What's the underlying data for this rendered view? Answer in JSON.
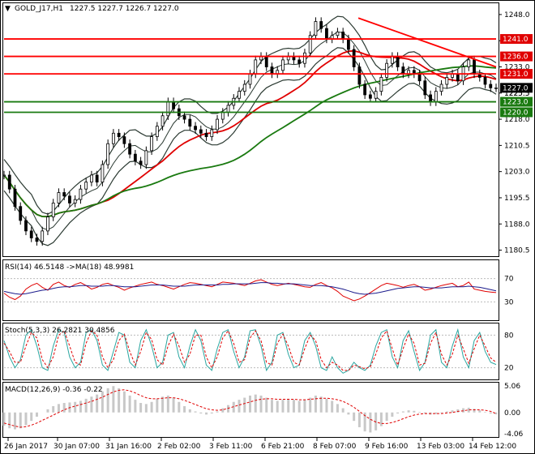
{
  "header": {
    "symbol": "GOLD_J17,H1",
    "ohlc": "1227.5 1227.7 1226.7 1227.0"
  },
  "colors": {
    "upper_band": "#1a2a22",
    "ma_red": "#e00000",
    "ma_green": "#1a7a10",
    "resistance_line": "#ff0000",
    "support_line": "#1a7a10",
    "badge_red": "#e00000",
    "badge_green": "#1a7a10",
    "badge_price": "#000000",
    "rsi_line": "#e00000",
    "rsi_ma": "#1b1b8c",
    "stoch_main": "#2aa6a0",
    "stoch_signal": "#e00000",
    "macd_hist": "#c8c8c8",
    "macd_signal": "#e00000"
  },
  "chart_data": [
    {
      "type": "candlestick",
      "panel": "price",
      "y_ticks": [
        1180.5,
        1188.0,
        1195.5,
        1203.0,
        1210.5,
        1218.0,
        1225.5,
        1233.0,
        1240.5,
        1248.0
      ],
      "y_tick_labels": [
        "1180.5",
        "1188.0",
        "1195.5",
        "1203.0",
        "1210.5",
        "1218.0",
        "1225.5",
        "1233.0",
        "1240.5",
        "1248.0"
      ],
      "ylim": [
        1179.0,
        1251.0
      ],
      "x_tick_labels": [
        "26 Jan 2017",
        "30 Jan 07:00",
        "31 Jan 16:00",
        "2 Feb 02:00",
        "3 Feb 11:00",
        "6 Feb 21:00",
        "8 Feb 07:00",
        "9 Feb 16:00",
        "13 Feb 03:00",
        "14 Feb 12:00"
      ],
      "horizontal_levels": [
        {
          "price": 1241.0,
          "label": "1241.0",
          "color": "red"
        },
        {
          "price": 1236.0,
          "label": "1236.0",
          "color": "red"
        },
        {
          "price": 1231.0,
          "label": "1231.0",
          "color": "red"
        },
        {
          "price": 1223.0,
          "label": "1223.0",
          "color": "green"
        },
        {
          "price": 1220.0,
          "label": "1220.0",
          "color": "green"
        }
      ],
      "current_price": {
        "price": 1227.0,
        "label": "1227.0"
      },
      "extra_price_label": "1225.5",
      "price_path": [
        1202,
        1198,
        1193,
        1189,
        1186,
        1184,
        1183,
        1186,
        1190,
        1194,
        1197,
        1196,
        1194,
        1195,
        1198,
        1200,
        1202,
        1200,
        1205,
        1211,
        1214,
        1213,
        1211,
        1208,
        1206,
        1205,
        1209,
        1213,
        1216,
        1219,
        1223,
        1221,
        1219,
        1218,
        1216,
        1215,
        1214,
        1213,
        1215,
        1218,
        1220,
        1222,
        1224,
        1226,
        1228,
        1231,
        1235,
        1236,
        1233,
        1231,
        1232,
        1235,
        1236,
        1235,
        1234,
        1237,
        1242,
        1246,
        1244,
        1241,
        1242,
        1243,
        1241,
        1238,
        1233,
        1228,
        1225,
        1224,
        1226,
        1230,
        1234,
        1236,
        1233,
        1231,
        1232,
        1231,
        1229,
        1225,
        1223,
        1226,
        1228,
        1230,
        1231,
        1229,
        1233,
        1235,
        1231,
        1230,
        1228,
        1227,
        1227
      ],
      "trendline": {
        "from_price": 1247.0,
        "to_price": 1233.0,
        "color": "red"
      },
      "moving_averages": [
        "red MA",
        "green MA"
      ],
      "bands": "bollinger-style envelopes"
    },
    {
      "type": "line",
      "panel": "RSI",
      "title": "RSI(14) 46.5148 ->MA(18) 48.9981",
      "levels": [
        70,
        30
      ],
      "level_labels": [
        "70",
        "30"
      ],
      "ylim": [
        0,
        100
      ],
      "rsi_path": [
        45,
        38,
        34,
        40,
        52,
        58,
        62,
        55,
        50,
        60,
        64,
        58,
        55,
        60,
        63,
        58,
        52,
        55,
        60,
        62,
        58,
        55,
        50,
        54,
        57,
        60,
        62,
        64,
        60,
        58,
        55,
        52,
        56,
        60,
        63,
        62,
        60,
        58,
        56,
        60,
        64,
        63,
        62,
        60,
        58,
        62,
        66,
        68,
        64,
        60,
        58,
        60,
        62,
        60,
        58,
        56,
        55,
        60,
        63,
        58,
        54,
        48,
        40,
        36,
        32,
        35,
        40,
        46,
        52,
        58,
        62,
        60,
        58,
        55,
        58,
        60,
        56,
        50,
        52,
        55,
        58,
        60,
        62,
        56,
        58,
        64,
        52,
        50,
        48,
        47,
        46
      ],
      "ma_path": [
        48,
        46,
        44,
        43,
        44,
        46,
        48,
        50,
        51,
        53,
        55,
        56,
        56,
        57,
        58,
        58,
        57,
        57,
        57,
        58,
        58,
        57,
        56,
        56,
        56,
        57,
        58,
        59,
        59,
        59,
        58,
        57,
        57,
        57,
        58,
        59,
        59,
        59,
        59,
        59,
        60,
        60,
        61,
        61,
        61,
        61,
        62,
        63,
        63,
        62,
        62,
        61,
        61,
        61,
        60,
        59,
        58,
        58,
        58,
        57,
        56,
        54,
        52,
        49,
        46,
        44,
        43,
        44,
        45,
        47,
        49,
        51,
        53,
        54,
        55,
        56,
        56,
        55,
        54,
        54,
        54,
        55,
        56,
        56,
        56,
        57,
        56,
        55,
        53,
        51,
        49
      ]
    },
    {
      "type": "line",
      "panel": "Stochastic",
      "title": "Stoch(5,3,3) 26.2821 30.4856",
      "levels": [
        80,
        20
      ],
      "level_labels": [
        "80",
        "20"
      ],
      "ylim": [
        0,
        100
      ],
      "main_path": [
        70,
        40,
        20,
        35,
        80,
        90,
        60,
        20,
        15,
        60,
        90,
        85,
        40,
        20,
        30,
        85,
        90,
        70,
        25,
        15,
        50,
        85,
        80,
        30,
        20,
        70,
        90,
        60,
        20,
        30,
        80,
        85,
        40,
        20,
        60,
        90,
        70,
        25,
        15,
        55,
        85,
        90,
        50,
        20,
        40,
        88,
        90,
        60,
        15,
        30,
        80,
        85,
        45,
        20,
        25,
        70,
        85,
        60,
        20,
        15,
        40,
        20,
        10,
        15,
        30,
        20,
        15,
        25,
        60,
        85,
        90,
        40,
        20,
        70,
        88,
        50,
        15,
        30,
        80,
        90,
        30,
        20,
        60,
        90,
        40,
        20,
        70,
        85,
        50,
        30,
        26
      ],
      "signal_path": [
        65,
        50,
        30,
        30,
        60,
        85,
        75,
        35,
        20,
        40,
        80,
        88,
        60,
        30,
        25,
        65,
        88,
        80,
        40,
        20,
        35,
        70,
        82,
        50,
        25,
        50,
        85,
        72,
        35,
        25,
        60,
        82,
        60,
        30,
        45,
        80,
        80,
        40,
        20,
        40,
        75,
        88,
        65,
        30,
        35,
        75,
        88,
        70,
        30,
        25,
        65,
        82,
        60,
        30,
        25,
        55,
        80,
        70,
        35,
        20,
        30,
        25,
        15,
        15,
        25,
        22,
        18,
        22,
        45,
        75,
        88,
        55,
        25,
        55,
        82,
        65,
        25,
        28,
        65,
        85,
        45,
        25,
        45,
        80,
        55,
        28,
        55,
        80,
        60,
        38,
        30
      ]
    },
    {
      "type": "bar",
      "panel": "MACD",
      "title": "MACD(12,26,9) -0.36 -0.22",
      "y_tick_labels": [
        "5.06",
        "0.00",
        "-4.06"
      ],
      "ylim": [
        -4.5,
        5.5
      ],
      "histogram": [
        -2.5,
        -3.0,
        -3.2,
        -3.0,
        -2.4,
        -1.6,
        -0.8,
        0.0,
        0.6,
        1.2,
        1.6,
        1.8,
        1.9,
        2.0,
        2.2,
        2.6,
        3.0,
        3.4,
        4.0,
        4.6,
        5.0,
        4.6,
        4.0,
        3.2,
        2.4,
        1.8,
        1.6,
        2.0,
        2.6,
        3.0,
        3.2,
        2.8,
        2.0,
        1.2,
        0.6,
        0.2,
        -0.2,
        -0.4,
        -0.2,
        0.2,
        0.8,
        1.4,
        2.0,
        2.4,
        2.8,
        3.2,
        3.4,
        3.2,
        2.8,
        2.4,
        2.2,
        2.4,
        2.6,
        2.4,
        2.2,
        2.4,
        2.8,
        3.2,
        3.0,
        2.6,
        2.2,
        1.6,
        0.8,
        -0.4,
        -1.6,
        -2.8,
        -3.6,
        -3.8,
        -3.4,
        -2.6,
        -1.6,
        -0.8,
        -0.2,
        0.2,
        0.4,
        0.3,
        0.1,
        -0.2,
        -0.4,
        -0.3,
        -0.1,
        0.2,
        0.4,
        0.6,
        0.8,
        0.9,
        0.7,
        0.4,
        0.1,
        -0.2,
        -0.36
      ],
      "signal": [
        -2.0,
        -2.3,
        -2.6,
        -2.8,
        -2.7,
        -2.4,
        -2.0,
        -1.5,
        -1.0,
        -0.5,
        0.0,
        0.5,
        0.9,
        1.2,
        1.5,
        1.8,
        2.1,
        2.5,
        2.9,
        3.4,
        3.9,
        4.2,
        4.3,
        4.1,
        3.7,
        3.2,
        2.8,
        2.6,
        2.6,
        2.7,
        2.8,
        2.8,
        2.6,
        2.3,
        1.9,
        1.5,
        1.1,
        0.7,
        0.5,
        0.4,
        0.5,
        0.8,
        1.1,
        1.4,
        1.7,
        2.0,
        2.3,
        2.5,
        2.6,
        2.6,
        2.5,
        2.5,
        2.5,
        2.5,
        2.4,
        2.4,
        2.5,
        2.6,
        2.7,
        2.7,
        2.6,
        2.4,
        2.1,
        1.6,
        1.0,
        0.2,
        -0.6,
        -1.3,
        -1.8,
        -2.1,
        -2.1,
        -1.9,
        -1.6,
        -1.2,
        -0.8,
        -0.5,
        -0.3,
        -0.2,
        -0.2,
        -0.2,
        -0.2,
        -0.1,
        0.0,
        0.2,
        0.3,
        0.5,
        0.5,
        0.5,
        0.4,
        0.2,
        -0.22
      ]
    }
  ]
}
